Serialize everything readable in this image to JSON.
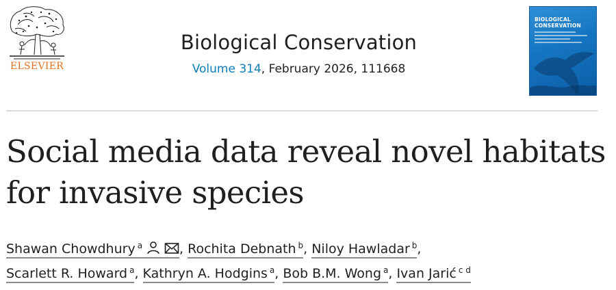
{
  "publisher": {
    "name": "ELSEVIER"
  },
  "journal": {
    "title": "Biological Conservation",
    "volume_label": "Volume 314",
    "citation_rest": ", February 2026, 111668"
  },
  "cover": {
    "title": "BIOLOGICAL CONSERVATION"
  },
  "article": {
    "title": "Social media data reveal novel habitats for invasive species"
  },
  "authors": [
    {
      "name": "Shawan Chowdhury",
      "aff": "a"
    },
    {
      "name": "Rochita Debnath",
      "aff": "b"
    },
    {
      "name": "Niloy Hawladar",
      "aff": "b"
    },
    {
      "name": "Scarlett R. Howard",
      "aff": "a"
    },
    {
      "name": "Kathryn A. Hodgins",
      "aff": "a"
    },
    {
      "name": "Bob B.M. Wong",
      "aff": "a"
    },
    {
      "name": "Ivan Jarić",
      "aff": "c d"
    }
  ],
  "icons": {
    "author_profile": "person-icon",
    "author_email": "envelope-icon"
  },
  "colors": {
    "publisher": "#e9711c",
    "link": "#0c7dbb",
    "cover": "#1574c0"
  }
}
